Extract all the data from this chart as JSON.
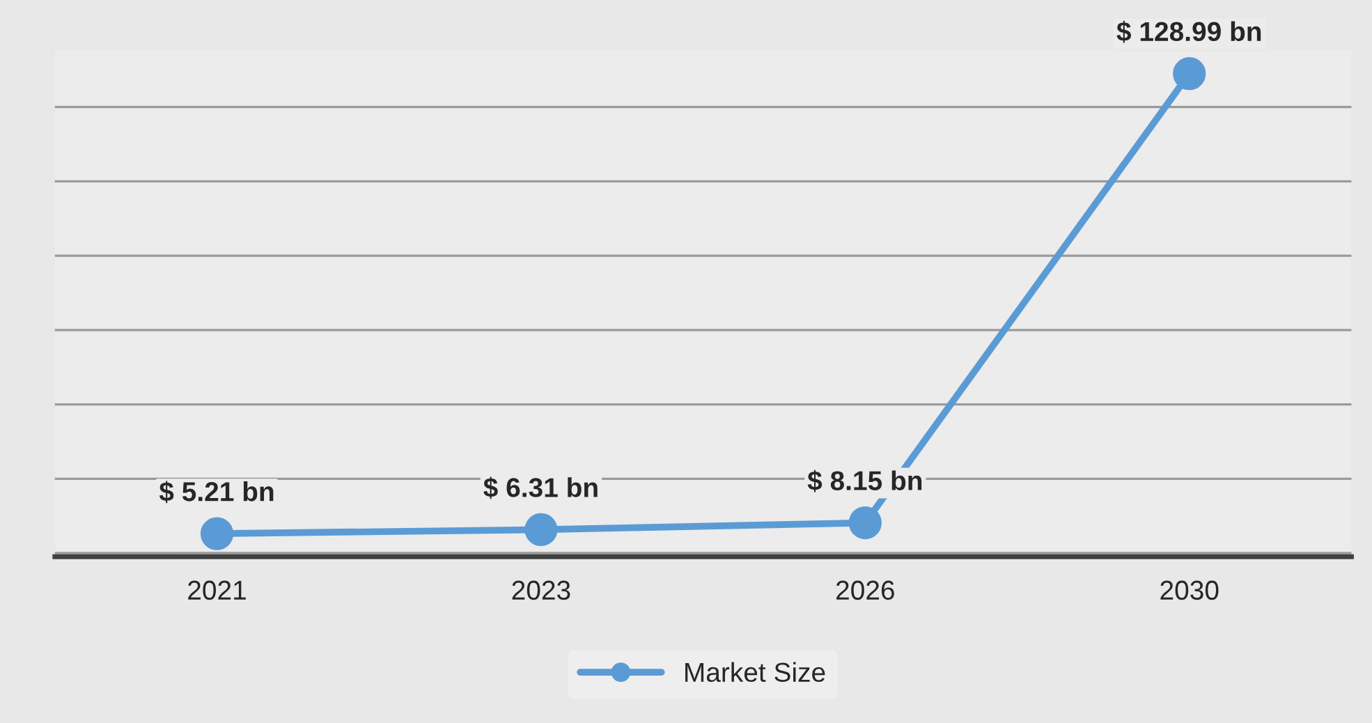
{
  "chart_data": {
    "type": "line",
    "categories": [
      "2021",
      "2023",
      "2026",
      "2030"
    ],
    "series": [
      {
        "name": "Market Size",
        "color": "#5b9bd5",
        "values": [
          5.21,
          6.31,
          8.15,
          128.99
        ],
        "value_labels": [
          "$ 5.21 bn",
          "$ 6.31 bn",
          "$ 8.15 bn",
          "$ 128.99 bn"
        ]
      }
    ],
    "tick_labels": "x",
    "grid": "y",
    "legend": "bottom",
    "marker": "circle",
    "line_style": "solid"
  }
}
